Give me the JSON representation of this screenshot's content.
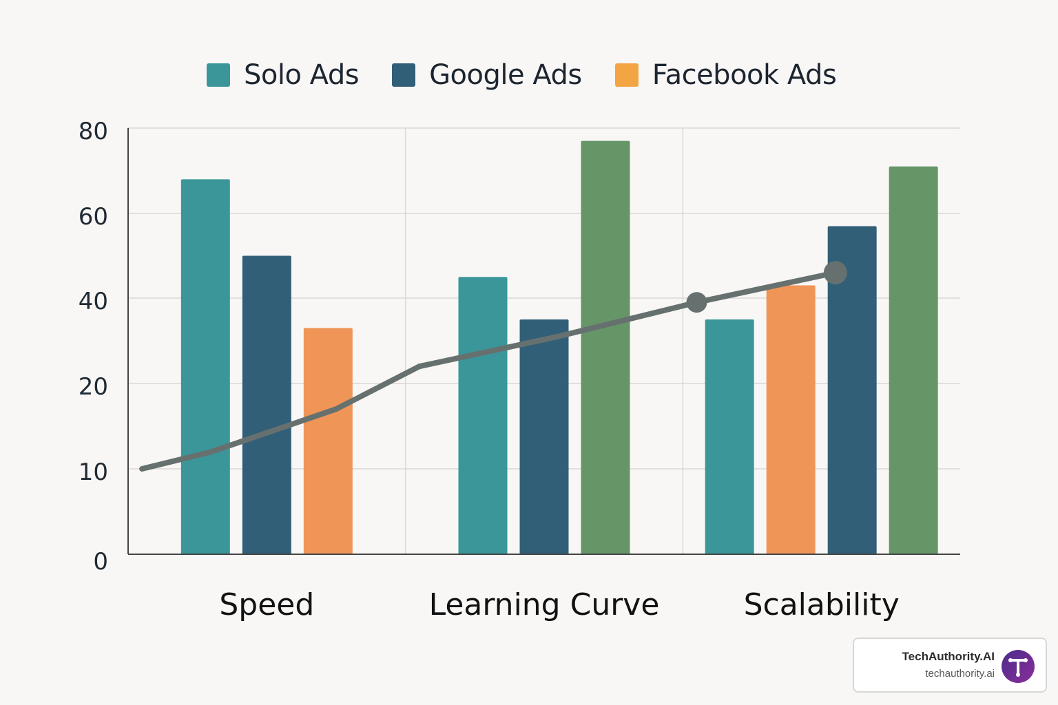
{
  "chart_data": {
    "type": "bar",
    "title": "",
    "xlabel": "",
    "ylabel": "",
    "categories": [
      "Speed",
      "Learning Curve",
      "Scalability"
    ],
    "y_ticks": [
      "0",
      "10",
      "20",
      "40",
      "60",
      "80"
    ],
    "y_tick_values": [
      0,
      10,
      20,
      40,
      60,
      80
    ],
    "legend": {
      "position": "top",
      "entries": [
        {
          "label": "Solo Ads",
          "color": "#3a9699"
        },
        {
          "label": "Google Ads",
          "color": "#325f78"
        },
        {
          "label": "Facebook Ads",
          "color": "#f3a443"
        }
      ]
    },
    "groups": [
      {
        "category": "Speed",
        "bars": [
          {
            "value": 68,
            "color": "#3a9699"
          },
          {
            "value": 50,
            "color": "#325f78"
          },
          {
            "value": 33,
            "color": "#ef9558"
          }
        ]
      },
      {
        "category": "Learning Curve",
        "bars": [
          {
            "value": 45,
            "color": "#3a9699"
          },
          {
            "value": 35,
            "color": "#325f78"
          },
          {
            "value": 77,
            "color": "#669568"
          }
        ]
      },
      {
        "category": "Scalability",
        "bars": [
          {
            "value": 35,
            "color": "#3a9699"
          },
          {
            "value": 43,
            "color": "#ef9558"
          },
          {
            "value": 57,
            "color": "#325f78"
          },
          {
            "value": 71,
            "color": "#669568"
          }
        ]
      }
    ],
    "trend_line": {
      "color": "#66716f",
      "points": [
        [
          0.05,
          10
        ],
        [
          0.3,
          12
        ],
        [
          0.75,
          17
        ],
        [
          1.05,
          24
        ],
        [
          1.55,
          31
        ],
        [
          2.05,
          39
        ],
        [
          2.55,
          46
        ]
      ],
      "markers": [
        [
          2.05,
          39
        ],
        [
          2.55,
          46
        ]
      ]
    },
    "grid": true
  },
  "watermark": {
    "name": "TechAuthority.AI",
    "url": "techauthority.ai",
    "logo_color": "#6a2e96"
  }
}
